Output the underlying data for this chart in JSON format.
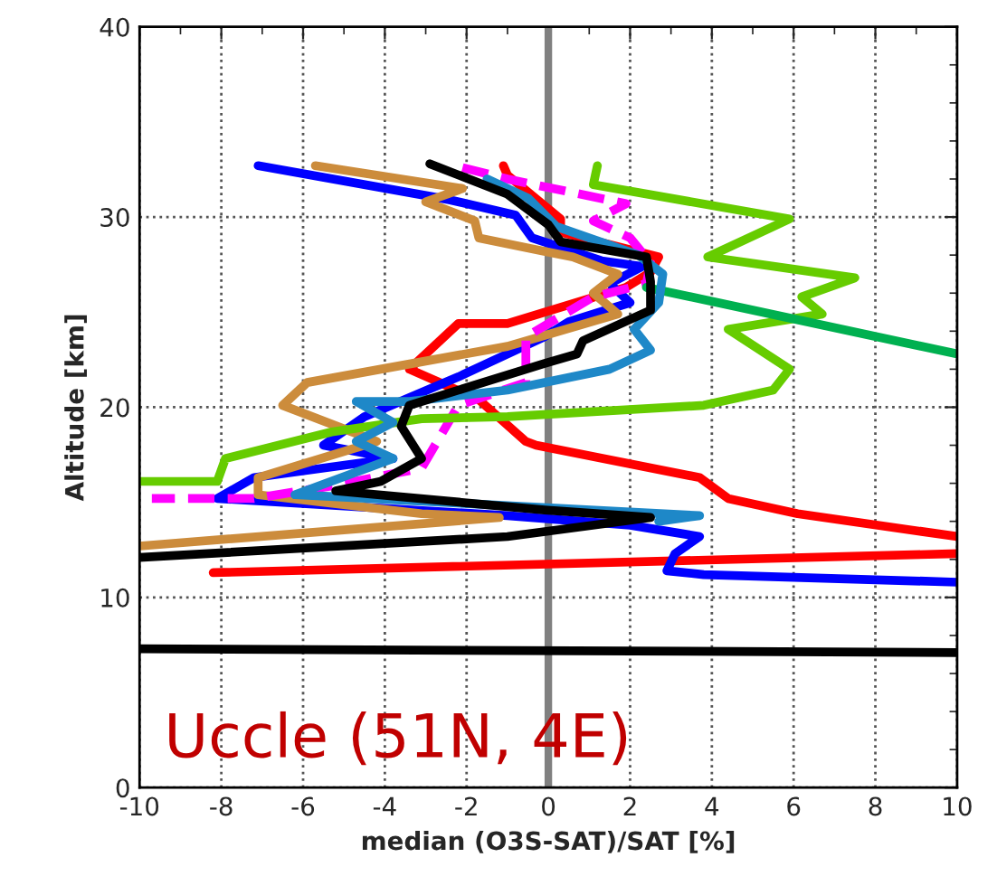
{
  "chart_data": {
    "type": "line",
    "xlabel": "median (O3S-SAT)/SAT [%]",
    "ylabel": "Altitude [km]",
    "xlim": [
      -10,
      10
    ],
    "xticks": [
      -10,
      -8,
      -6,
      -4,
      -2,
      0,
      2,
      4,
      6,
      8,
      10
    ],
    "ylim": [
      0,
      40
    ],
    "yticks": [
      0,
      10,
      20,
      30,
      40
    ],
    "grid": true,
    "legend": false,
    "marker": "none",
    "ref_lines": [
      {
        "axis": "x",
        "value": 0,
        "color": "#808080"
      }
    ],
    "annotations": [
      "Uccle (51N, 4E)"
    ],
    "series": [
      {
        "color": "#ff0000",
        "x": [
          -1.1,
          -1.0,
          0.3,
          0.3,
          2.7,
          2.5,
          1.9,
          -1.0,
          -2.2,
          -3.4,
          -1.7,
          -0.55,
          -0.3,
          3.7,
          4.4,
          6.1,
          10
        ],
        "values": [
          32.7,
          32.2,
          29.9,
          29.2,
          27.9,
          27.1,
          26.3,
          24.4,
          24.4,
          22.0,
          20.4,
          18.2,
          18.0,
          16.3,
          15.2,
          14.4,
          13.2
        ]
      },
      {
        "color": "#ff0000",
        "x": [
          10,
          -8.2
        ],
        "values": [
          12.3,
          11.3
        ]
      },
      {
        "color": "#0000ff",
        "x": [
          -7.1,
          -2.4,
          -0.8,
          -0.4,
          1.3,
          2.3,
          1.5,
          2.0,
          0.5,
          -0.1,
          -2.2,
          -4.5,
          -5.5,
          -3.8,
          -7.2,
          -8.1,
          -1.0,
          2.0,
          3.7,
          3.1,
          2.9,
          3.8,
          10
        ],
        "values": [
          32.7,
          30.9,
          30.1,
          28.9,
          27.7,
          27.4,
          26.5,
          25.5,
          24.5,
          23.7,
          21.6,
          19.5,
          18.0,
          17.3,
          16.3,
          15.2,
          14.3,
          13.8,
          13.2,
          12.3,
          11.4,
          11.2,
          10.8
        ]
      },
      {
        "color": "#cc8c3c",
        "x": [
          -5.7,
          -2.1,
          -3.0,
          -1.8,
          -1.7,
          -0.1,
          0.6,
          1.7,
          1.1,
          1.7,
          -1.0,
          -4.1,
          -5.9,
          -6.5,
          -4.2,
          -7.1,
          -7.1,
          -3.1,
          -1.2,
          -10
        ],
        "values": [
          32.7,
          31.5,
          30.8,
          29.8,
          28.9,
          28.2,
          27.9,
          27.0,
          26.0,
          24.9,
          23.2,
          22.0,
          21.3,
          20.1,
          18.2,
          16.3,
          15.4,
          14.4,
          14.2,
          12.7
        ]
      },
      {
        "color": "#ff00ff",
        "line_style": "dashed",
        "x": [
          -2.1,
          -1.0,
          1.9,
          1.1,
          2.0,
          2.5,
          2.4,
          1.1,
          -0.55,
          -0.55,
          -2.2,
          -3.1,
          -5.2,
          -7.2,
          -9.7
        ],
        "values": [
          32.6,
          32.0,
          30.7,
          29.8,
          28.9,
          27.6,
          26.5,
          25.8,
          23.7,
          21.3,
          20.1,
          16.8,
          15.9,
          15.2,
          15.2
        ]
      },
      {
        "color": "#66cc00",
        "x": [
          1.2,
          1.1,
          5.9,
          3.9,
          7.5,
          6.2,
          6.7,
          4.4,
          5.9,
          5.5,
          3.8,
          -1.0,
          -3.1,
          -5.3,
          -7.9,
          -8.1,
          -10
        ],
        "values": [
          32.7,
          31.7,
          29.9,
          27.9,
          26.8,
          25.8,
          24.9,
          24.1,
          22.0,
          20.9,
          20.1,
          19.5,
          19.4,
          18.7,
          17.3,
          16.1,
          16.1
        ]
      },
      {
        "color": "#00b050",
        "x": [
          2.4,
          10
        ],
        "values": [
          26.3,
          22.8
        ]
      },
      {
        "color": "#1e88c8",
        "x": [
          -1.5,
          -0.5,
          0.2,
          2.2,
          2.8,
          2.7,
          2.1,
          2.5,
          1.5,
          -1.0,
          -3.4,
          -4.7,
          -3.8,
          -4.7,
          -3.8,
          -6.2,
          3.7,
          2.7
        ],
        "values": [
          32.0,
          31.0,
          29.5,
          28.0,
          27.0,
          25.5,
          24.1,
          23.0,
          22.0,
          20.9,
          20.3,
          20.3,
          19.2,
          18.2,
          17.3,
          15.4,
          14.3,
          14.0
        ]
      },
      {
        "color": "#000000",
        "x": [
          -2.9,
          -1.0,
          0.0,
          0.3,
          2.4,
          2.5,
          2.5,
          0.85,
          0.7,
          -0.1,
          -3.4,
          -3.6,
          -3.1,
          -4.1,
          -5.2,
          -0.1,
          2.5,
          -1.0,
          -10
        ],
        "values": [
          32.8,
          31.2,
          29.6,
          28.7,
          27.9,
          26.6,
          25.1,
          23.5,
          22.8,
          22.3,
          20.1,
          19.0,
          17.3,
          16.1,
          15.6,
          14.6,
          14.2,
          13.2,
          12.1
        ]
      },
      {
        "color": "#000000",
        "x": [
          -10,
          10
        ],
        "values": [
          7.3,
          7.1
        ]
      }
    ]
  }
}
